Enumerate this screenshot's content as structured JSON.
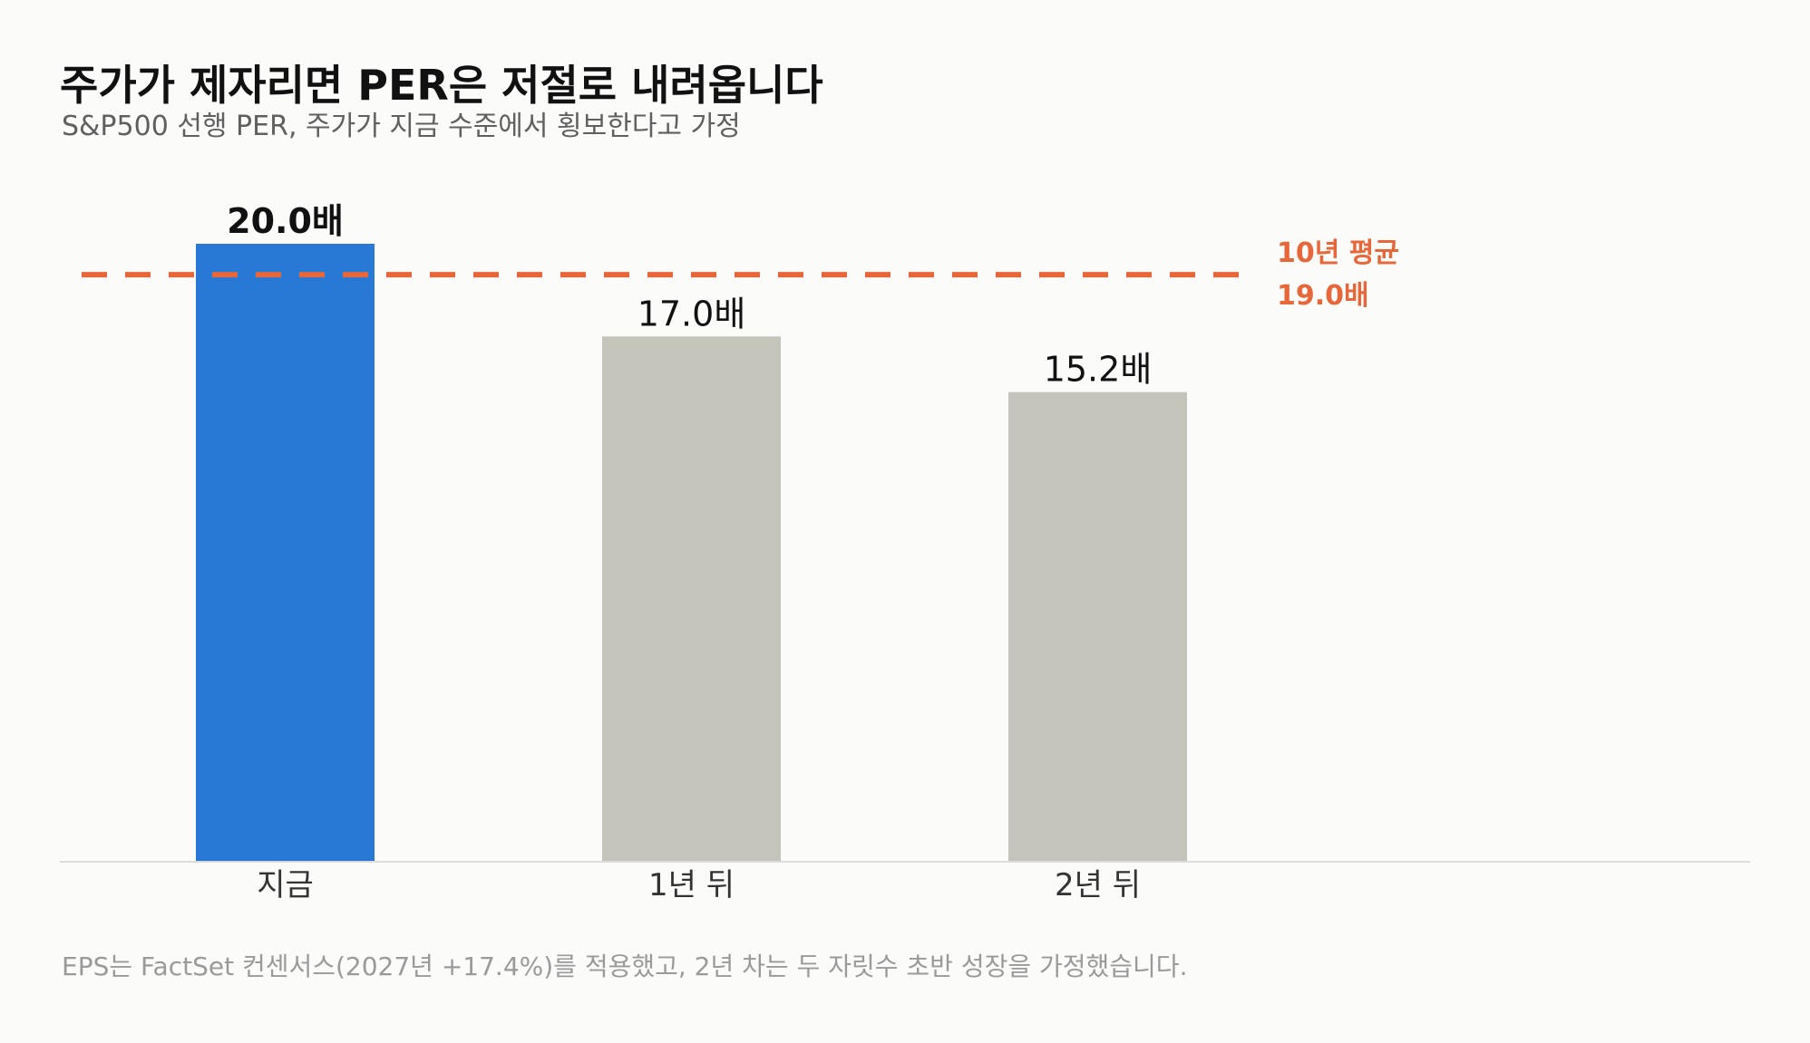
{
  "header": {
    "title": "주가가 제자리면 PER은 저절로 내려옵니다",
    "subtitle": "S&P500 선행 PER, 주가가 지금 수준에서 횡보한다고 가정"
  },
  "footnote": "EPS는 FactSet 컨센서스(2027년 +17.4%)를 적용했고, 2년 차는 두 자릿수 초반 성장을 가정했습니다.",
  "colors": {
    "highlight_bar": "#2878d6",
    "normal_bar": "#c4c4bb",
    "reference_line": "#e8673a",
    "axis": "#dcdcdc",
    "background": "#fbfbf9"
  },
  "chart_data": {
    "type": "bar",
    "title": "주가가 제자리면 PER은 저절로 내려옵니다",
    "subtitle": "S&P500 선행 PER, 주가가 지금 수준에서 횡보한다고 가정",
    "categories": [
      "지금",
      "1년 뒤",
      "2년 뒤"
    ],
    "values": [
      20.0,
      17.0,
      15.2
    ],
    "value_labels": [
      "20.0배",
      "17.0배",
      "15.2배"
    ],
    "highlight_index": 0,
    "ylim": [
      0,
      20.0
    ],
    "grid": false,
    "reference_line": {
      "value": 19.0,
      "label_line1": "10년 평균",
      "label_line2": "19.0배",
      "style": "dashed"
    }
  }
}
